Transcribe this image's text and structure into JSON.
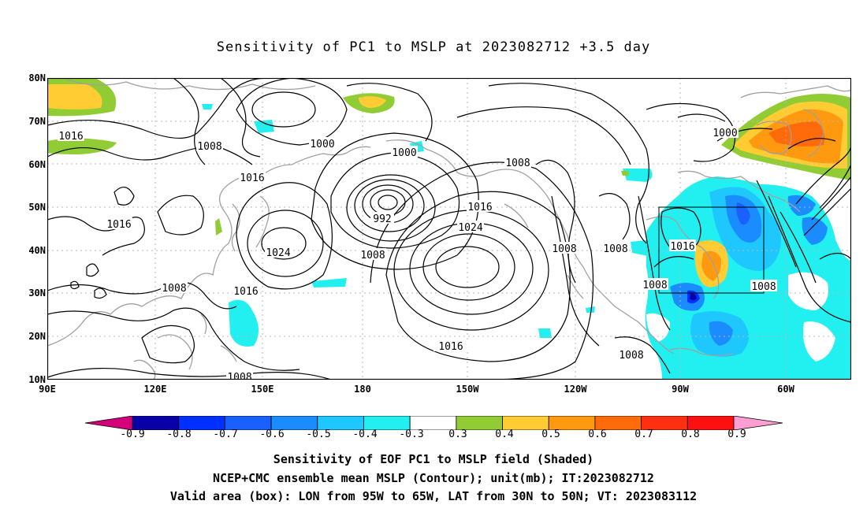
{
  "title": "Sensitivity of PC1 to MSLP at 2023082712 +3.5 day",
  "lat_labels": [
    "80N",
    "70N",
    "60N",
    "50N",
    "40N",
    "30N",
    "20N",
    "10N"
  ],
  "lon_labels": [
    "90E",
    "120E",
    "150E",
    "180",
    "150W",
    "120W",
    "90W",
    "60W"
  ],
  "contour_labels": {
    "c1016_a": "1016",
    "c1008_a": "1008",
    "c1000_a": "1000",
    "c1016_b": "1016",
    "c1000_b": "1000",
    "c1008_b": "1008",
    "c992": "992",
    "c1016_c": "1016",
    "c1024_a": "1024",
    "c1008_c": "1008",
    "c1024_b": "1024",
    "c1008_d": "1008",
    "c1008_e": "1008",
    "c1016_d": "1016",
    "c1000_c": "1000",
    "c1016_e": "1016",
    "c1008_f": "1008",
    "c1008_g": "1008",
    "c1016_f": "1016",
    "c1008_h": "1008",
    "c1008_i": "1008",
    "c1008_j": "1008"
  },
  "colorbar": {
    "labels": [
      "-0.9",
      "-0.8",
      "-0.7",
      "-0.6",
      "-0.5",
      "-0.4",
      "-0.3",
      "0.3",
      "0.4",
      "0.5",
      "0.6",
      "0.7",
      "0.8",
      "0.9"
    ],
    "colors": [
      "#0a00a8",
      "#0030ff",
      "#1a60ff",
      "#1a8cff",
      "#1ec8ff",
      "#22f0f0",
      "#ffffff",
      "#92cc34",
      "#ffcc33",
      "#ff9a10",
      "#ff6a0a",
      "#ff3010",
      "#ff1010"
    ],
    "low_color": "#d4007a",
    "high_color": "#ff9ed2"
  },
  "caption": {
    "line1": "Sensitivity of EOF PC1 to MSLP field (Shaded)",
    "line2": "NCEP+CMC ensemble mean MSLP (Contour); unit(mb); IT:2023082712",
    "line3": "Valid area (box): LON from 95W to 65W, LAT from 30N to 50N; VT: 2023083112"
  }
}
